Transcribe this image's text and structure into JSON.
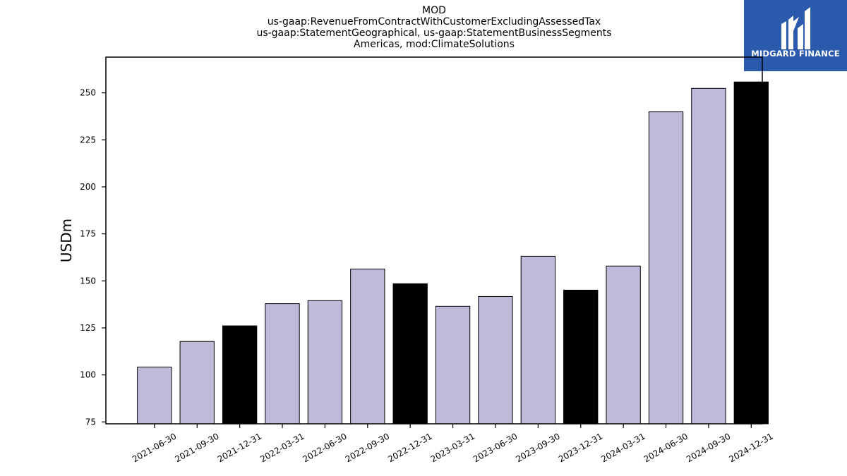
{
  "chart_data": {
    "type": "bar",
    "title_lines": [
      "MOD",
      "us-gaap:RevenueFromContractWithCustomerExcludingAssessedTax",
      "us-gaap:StatementGeographical, us-gaap:StatementBusinessSegments",
      "Americas, mod:ClimateSolutions"
    ],
    "xlabel": "",
    "ylabel": "USDm",
    "ylim": [
      74,
      269
    ],
    "yticks": [
      75,
      100,
      125,
      150,
      175,
      200,
      225,
      250
    ],
    "grid": false,
    "categories": [
      "2021-06-30",
      "2021-09-30",
      "2021-12-31",
      "2022-03-31",
      "2022-06-30",
      "2022-09-30",
      "2022-12-31",
      "2023-03-31",
      "2023-06-30",
      "2023-09-30",
      "2023-12-31",
      "2024-03-31",
      "2024-06-30",
      "2024-09-30",
      "2024-12-31"
    ],
    "values": [
      104.2,
      117.8,
      126.1,
      137.9,
      139.5,
      156.3,
      148.5,
      136.5,
      141.7,
      163.1,
      145.1,
      157.9,
      239.9,
      252.4,
      255.8
    ],
    "bar_colors": [
      "#bdbbd9",
      "#bdbbd9",
      "#000000",
      "#bdbbd9",
      "#bdbbd9",
      "#bdbbd9",
      "#000000",
      "#bdbbd9",
      "#bdbbd9",
      "#bdbbd9",
      "#000000",
      "#bdbbd9",
      "#bdbbd9",
      "#bdbbd9",
      "#000000"
    ],
    "bar_edge_color": "#000000"
  },
  "logo": {
    "text": "MIDGARD FINANCE",
    "background": "#2b5aad",
    "icon": "midgard-m-icon"
  }
}
